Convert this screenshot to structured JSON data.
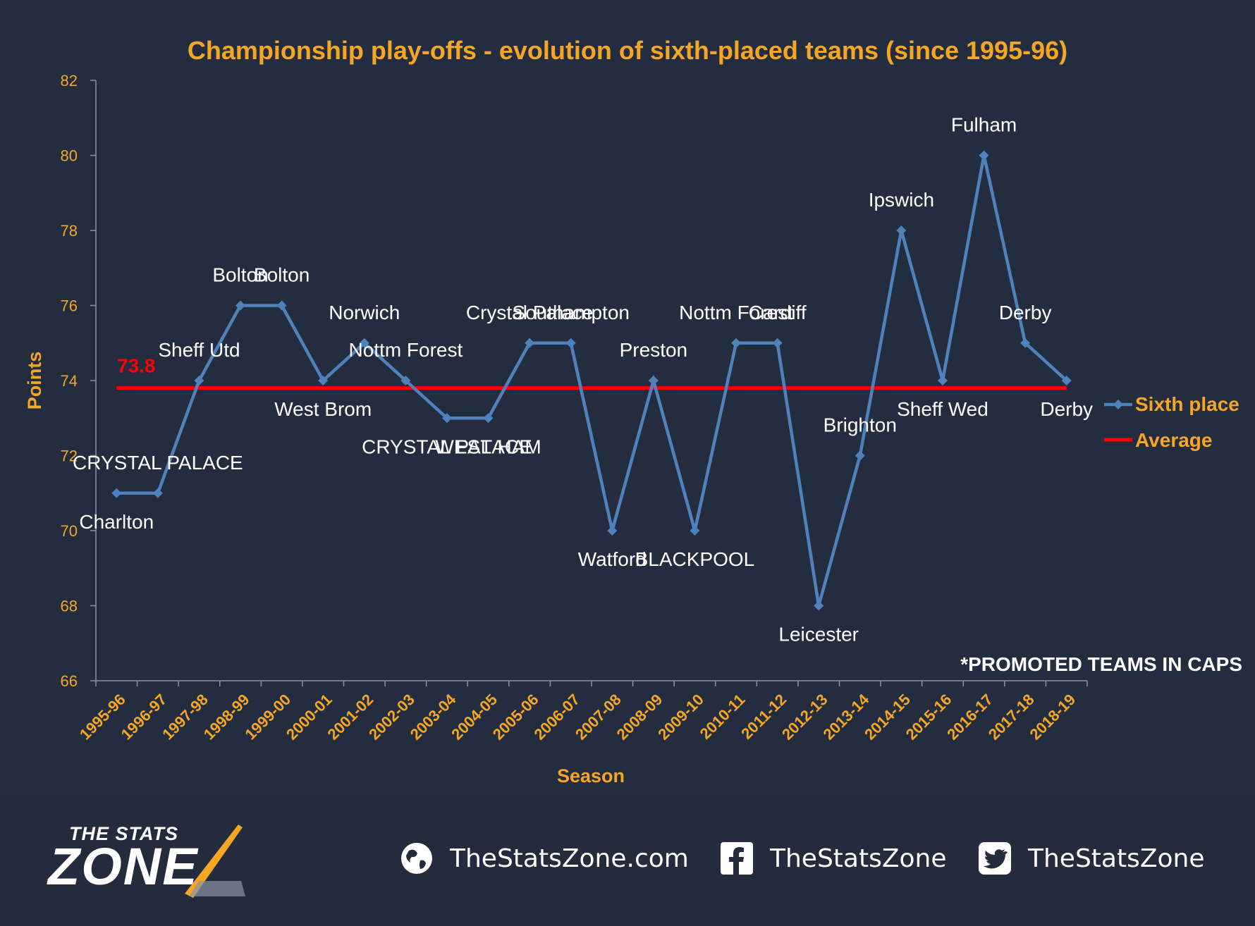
{
  "chart_data": {
    "type": "line",
    "title": "Championship play-offs - evolution of sixth-placed teams (since 1995-96)",
    "xlabel": "Season",
    "ylabel": "Points",
    "ylim": [
      66,
      82
    ],
    "yticks": [
      66,
      68,
      70,
      72,
      74,
      76,
      78,
      80,
      82
    ],
    "grid": false,
    "legend_position": "right",
    "categories": [
      "1995-96",
      "1996-97",
      "1997-98",
      "1998-99",
      "1999-00",
      "2000-01",
      "2001-02",
      "2002-03",
      "2003-04",
      "2004-05",
      "2005-06",
      "2006-07",
      "2007-08",
      "2008-09",
      "2009-10",
      "2010-11",
      "2011-12",
      "2012-13",
      "2013-14",
      "2014-15",
      "2015-16",
      "2016-17",
      "2017-18",
      "2018-19"
    ],
    "series": [
      {
        "name": "Sixth place",
        "color": "#4f81bd",
        "values": [
          71,
          71,
          74,
          76,
          76,
          74,
          75,
          74,
          73,
          73,
          75,
          75,
          70,
          74,
          70,
          75,
          75,
          68,
          72,
          78,
          74,
          80,
          75,
          74
        ],
        "point_labels": [
          "Charlton",
          "CRYSTAL PALACE",
          "Sheff Utd",
          "Bolton",
          "Bolton",
          "West Brom",
          "Norwich",
          "Nottm Forest",
          "CRYSTAL PALACE",
          "WEST HAM",
          "Crystal Palace",
          "Southampton",
          "Watford",
          "Preston",
          "BLACKPOOL",
          "Nottm Forest",
          "Cardiff",
          "Leicester",
          "Brighton",
          "Ipswich",
          "Sheff Wed",
          "Fulham",
          "Derby",
          "Derby"
        ]
      },
      {
        "name": "Average",
        "color": "#ff0000",
        "value": 73.8,
        "value_label": "73.8"
      }
    ],
    "annotation": "*PROMOTED TEAMS IN CAPS"
  },
  "colors": {
    "background": "#242d40",
    "accent": "#f5a623",
    "text": "#ffffff",
    "line": "#4f81bd",
    "average": "#ff0000"
  },
  "footer": {
    "logo_top": "THE STATS",
    "logo_main": "ZONE",
    "website": "TheStatsZone.com",
    "facebook": "TheStatsZone",
    "twitter": "TheStatsZone",
    "website_icon": "globe-icon",
    "facebook_icon": "facebook-icon",
    "twitter_icon": "twitter-icon"
  }
}
